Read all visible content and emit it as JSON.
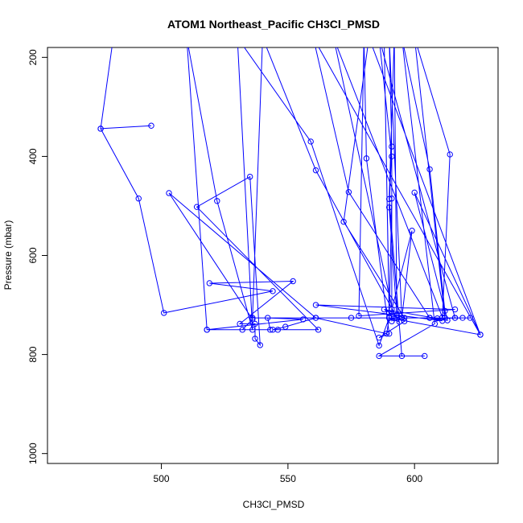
{
  "chart_data": {
    "type": "line",
    "title": "ATOM1 Northeast_Pacific CH3Cl_PMSD",
    "xlabel": "CH3Cl_PMSD",
    "ylabel": "Pressure (mbar)",
    "xlim": [
      455,
      633
    ],
    "ylim": [
      1020,
      180
    ],
    "y_reversed": true,
    "x_ticks": [
      500,
      550,
      600
    ],
    "y_ticks": [
      200,
      400,
      600,
      800,
      1000
    ],
    "grid": false,
    "legend": "none",
    "series_color": "#0000ff",
    "marker": "open-circle",
    "series": [
      {
        "name": "",
        "points": [
          [
            481,
            160
          ],
          [
            476,
            344
          ],
          [
            496,
            338
          ],
          [
            476,
            344
          ],
          [
            491,
            485
          ],
          [
            501,
            716
          ],
          [
            544,
            672
          ],
          [
            519,
            656
          ],
          [
            552,
            652
          ],
          [
            531,
            738
          ],
          [
            537,
            738
          ],
          [
            537,
            768
          ],
          [
            539,
            781
          ],
          [
            535,
            441
          ],
          [
            514,
            502
          ],
          [
            562,
            750
          ],
          [
            546,
            750
          ],
          [
            544,
            750
          ],
          [
            549,
            744
          ],
          [
            561,
            726
          ],
          [
            503,
            474
          ],
          [
            536,
            729
          ],
          [
            532,
            750
          ],
          [
            518,
            750
          ],
          [
            543,
            750
          ],
          [
            542,
            726
          ],
          [
            556,
            729
          ],
          [
            518,
            750
          ],
          [
            510,
            160
          ],
          [
            522,
            490
          ],
          [
            536,
            750
          ],
          [
            530,
            160
          ],
          [
            559,
            370
          ],
          [
            586,
            782
          ],
          [
            590,
            726
          ],
          [
            589,
            758
          ],
          [
            561,
            726
          ],
          [
            575,
            726
          ],
          [
            606,
            726
          ],
          [
            622,
            726
          ],
          [
            616,
            726
          ],
          [
            612,
            726
          ],
          [
            536,
            726
          ],
          [
            540,
            160
          ],
          [
            561,
            428
          ],
          [
            594,
            734
          ],
          [
            590,
            726
          ],
          [
            606,
            726
          ],
          [
            611,
            732
          ],
          [
            561,
            700
          ],
          [
            616,
            709
          ],
          [
            578,
            722
          ],
          [
            580,
            160
          ],
          [
            581,
            404
          ],
          [
            590,
            758
          ],
          [
            586,
            766
          ],
          [
            596,
            733
          ],
          [
            588,
            709
          ],
          [
            609,
            727
          ],
          [
            619,
            726
          ],
          [
            616,
            726
          ],
          [
            586,
            160
          ],
          [
            591,
            400
          ],
          [
            591,
            733
          ],
          [
            591,
            709
          ],
          [
            599,
            550
          ],
          [
            595,
            726
          ],
          [
            590,
            160
          ],
          [
            591,
            380
          ],
          [
            590,
            503
          ],
          [
            593,
            720
          ],
          [
            592,
            160
          ],
          [
            590,
            486
          ],
          [
            595,
            803
          ],
          [
            604,
            803
          ],
          [
            586,
            803
          ],
          [
            608,
            738
          ],
          [
            595,
            160
          ],
          [
            606,
            426
          ],
          [
            612,
            712
          ],
          [
            612,
            726
          ],
          [
            600,
            160
          ],
          [
            614,
            396
          ],
          [
            611,
            725
          ],
          [
            568,
            160
          ],
          [
            592,
            727
          ],
          [
            590,
            726
          ],
          [
            591,
            485
          ],
          [
            590,
            726
          ],
          [
            626,
            760
          ],
          [
            560,
            160
          ],
          [
            574,
            472
          ],
          [
            606,
            726
          ],
          [
            613,
            731
          ],
          [
            600,
            473
          ],
          [
            626,
            760
          ],
          [
            582,
            160
          ],
          [
            572,
            532
          ],
          [
            596,
            726
          ],
          [
            590,
            716
          ],
          [
            588,
            160
          ],
          [
            590,
            726
          ]
        ]
      }
    ]
  }
}
